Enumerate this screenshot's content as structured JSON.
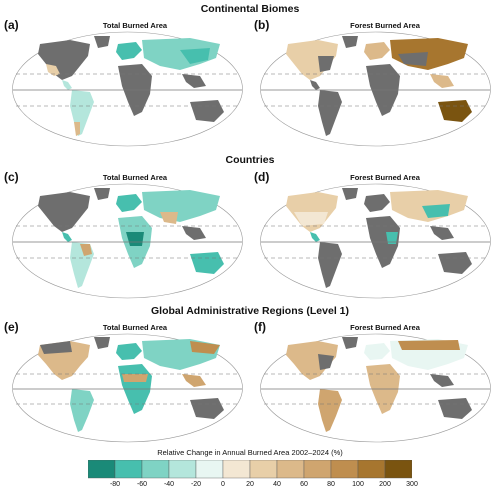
{
  "sections": [
    {
      "title": "Continental Biomes"
    },
    {
      "title": "Countries"
    },
    {
      "title": "Global Administrative Regions (Level 1)"
    }
  ],
  "panels": [
    {
      "letter": "(a)",
      "title": "Total Burned Area"
    },
    {
      "letter": "(b)",
      "title": "Forest Burned Area"
    },
    {
      "letter": "(c)",
      "title": "Total Burned Area"
    },
    {
      "letter": "(d)",
      "title": "Forest Burned Area"
    },
    {
      "letter": "(e)",
      "title": "Total Burned Area"
    },
    {
      "letter": "(f)",
      "title": "Forest Burned Area"
    }
  ],
  "legend": {
    "title": "Relative Change in Annual Burned Area 2002–2024 (%)",
    "ticks": [
      "-80",
      "-60",
      "-40",
      "-20",
      "0",
      "20",
      "40",
      "60",
      "80",
      "100",
      "200",
      "300"
    ],
    "colors": [
      "#1a8a78",
      "#47bfae",
      "#7fd3c4",
      "#b4e6dc",
      "#e8f6f2",
      "#f3e7d3",
      "#e8cfa8",
      "#dcb98a",
      "#cfa56f",
      "#bf8e4f",
      "#a7762f",
      "#7a5410"
    ],
    "nodata_color": "#6e6e6e"
  }
}
